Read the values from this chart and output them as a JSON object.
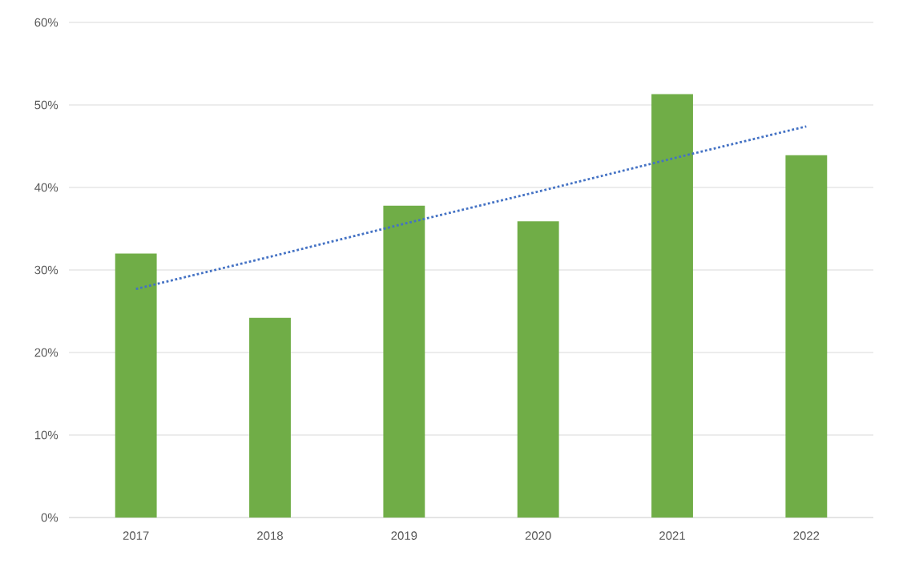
{
  "chart_data": {
    "type": "bar",
    "categories": [
      "2017",
      "2018",
      "2019",
      "2020",
      "2021",
      "2022"
    ],
    "series": [
      {
        "color": "#70ad47",
        "values": [
          32,
          24.2,
          37.8,
          35.9,
          51.3,
          43.9
        ]
      },
      {
        "type": "line",
        "color": "#4472c4",
        "line_style": "dotted",
        "values": [
          27.7,
          31.6,
          35.6,
          39.5,
          43.5,
          47.4
        ]
      }
    ],
    "ylim": [
      0,
      60
    ],
    "yticks": [
      {
        "value": 0,
        "label": "0%"
      },
      {
        "value": 10,
        "label": "10%"
      },
      {
        "value": 20,
        "label": "20%"
      },
      {
        "value": 30,
        "label": "30%"
      },
      {
        "value": 40,
        "label": "40%"
      },
      {
        "value": 50,
        "label": "50%"
      },
      {
        "value": 60,
        "label": "60%"
      }
    ],
    "grid": "y"
  }
}
